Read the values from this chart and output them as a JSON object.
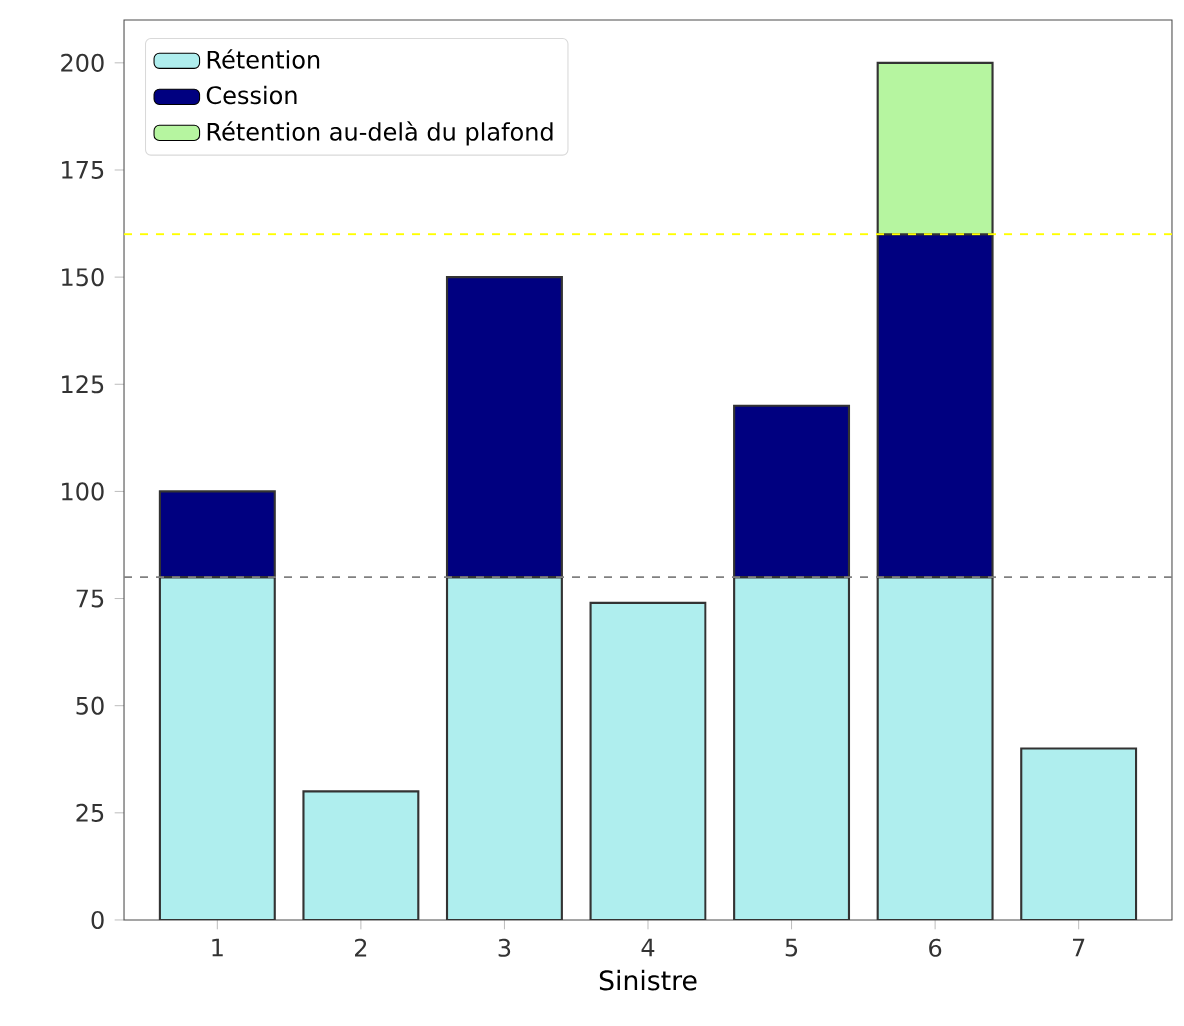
{
  "chart_data": {
    "type": "bar",
    "stacked": true,
    "xlabel": "Sinistre",
    "categories": [
      "1",
      "2",
      "3",
      "4",
      "5",
      "6",
      "7"
    ],
    "series": [
      {
        "name": "Rétention",
        "color": "#afeeee",
        "values": [
          80,
          30,
          80,
          74,
          80,
          80,
          40
        ]
      },
      {
        "name": "Cession",
        "color": "#000080",
        "values": [
          20,
          null,
          70,
          null,
          40,
          80,
          null
        ]
      },
      {
        "name": "Rétention au-delà du plafond",
        "color": "#b6f5a0",
        "values": [
          null,
          null,
          null,
          null,
          null,
          40,
          null
        ]
      }
    ],
    "ylim": [
      0,
      210
    ],
    "yticks": [
      0,
      25,
      50,
      75,
      100,
      125,
      150,
      175,
      200
    ],
    "ref_lines": [
      {
        "axis": "y",
        "value": 80,
        "color": "#808080",
        "line_style": "dashed"
      },
      {
        "axis": "y",
        "value": 160,
        "color": "#ffff00",
        "line_style": "dashed"
      }
    ],
    "legend": "top left"
  }
}
